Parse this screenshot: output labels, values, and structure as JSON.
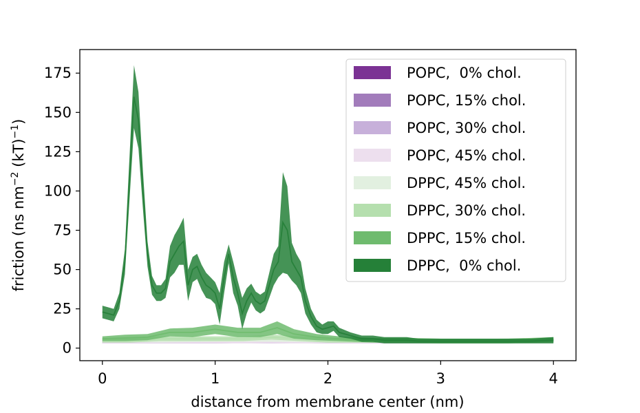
{
  "chart_data": {
    "type": "area",
    "xlabel": "distance from membrane center (nm)",
    "ylabel": "friction (ns nm",
    "ylabel_sup1": "−2",
    "ylabel_mid": " (kT)",
    "ylabel_sup2": "−1",
    "ylabel_end": ")",
    "xlim": [
      -0.2,
      4.2
    ],
    "ylim": [
      -8,
      190
    ],
    "x_ticks": [
      0,
      1,
      2,
      3,
      4
    ],
    "x_tick_labels": [
      "0",
      "1",
      "2",
      "3",
      "4"
    ],
    "y_ticks": [
      0,
      25,
      50,
      75,
      100,
      125,
      150,
      175
    ],
    "y_tick_labels": [
      "0",
      "25",
      "50",
      "75",
      "100",
      "125",
      "150",
      "175"
    ],
    "legend_position": "upper right",
    "series": [
      {
        "name": "POPC,  0% chol.",
        "color": "#7b3294",
        "x": [
          0,
          0.5,
          1.0,
          1.5,
          2.0,
          2.5,
          3.0,
          3.5,
          4.0
        ],
        "mean": [
          4.5,
          4,
          4,
          4.5,
          4,
          4,
          4,
          4.5,
          5
        ],
        "half_width": [
          1,
          1,
          1,
          1,
          1,
          1,
          1,
          1,
          1
        ]
      },
      {
        "name": "POPC, 15% chol.",
        "color": "#a27cbb",
        "x": [
          0,
          0.5,
          1.0,
          1.5,
          2.0,
          2.5,
          3.0,
          3.5,
          4.0
        ],
        "mean": [
          4,
          4,
          4.5,
          4,
          4.5,
          4,
          4,
          4.5,
          5
        ],
        "half_width": [
          1,
          1,
          1,
          1,
          1,
          1,
          1,
          1,
          1
        ]
      },
      {
        "name": "POPC, 30% chol.",
        "color": "#c7b0da",
        "x": [
          0,
          0.5,
          1.0,
          1.5,
          2.0,
          2.5,
          3.0,
          3.5,
          4.0
        ],
        "mean": [
          4,
          4,
          4,
          4.5,
          4,
          4,
          4,
          4,
          5
        ],
        "half_width": [
          1,
          1,
          1,
          1,
          1,
          1,
          1,
          1,
          1
        ]
      },
      {
        "name": "POPC, 45% chol.",
        "color": "#eddfee",
        "x": [
          0,
          0.5,
          1.0,
          1.5,
          2.0,
          2.5,
          3.0,
          3.5,
          4.0
        ],
        "mean": [
          4,
          4,
          4,
          4,
          4,
          4,
          4,
          4,
          4.5
        ],
        "half_width": [
          1,
          1,
          1,
          1,
          1,
          1,
          1,
          1,
          1
        ]
      },
      {
        "name": "DPPC, 45% chol.",
        "color": "#e2f0e0",
        "x": [
          0,
          0.5,
          1.0,
          1.5,
          2.0,
          2.5,
          3.0,
          3.5,
          4.0
        ],
        "mean": [
          5,
          4.5,
          5,
          5,
          4.5,
          4.5,
          4.5,
          4.5,
          5
        ],
        "half_width": [
          1,
          1,
          1,
          1,
          1,
          1,
          1,
          1,
          1
        ]
      },
      {
        "name": "DPPC, 30% chol.",
        "color": "#b5dfae",
        "x": [
          0,
          0.25,
          0.5,
          0.75,
          1.0,
          1.25,
          1.5,
          1.75,
          2.0,
          2.5,
          3.0,
          3.5,
          4.0
        ],
        "mean": [
          5,
          5,
          6,
          6,
          6,
          6,
          7,
          6,
          5,
          5,
          4.5,
          4.5,
          5
        ],
        "half_width": [
          1.5,
          1.5,
          1.5,
          1.5,
          1.5,
          1.5,
          1.5,
          1.5,
          1.5,
          1.5,
          1.5,
          1.5,
          1.5
        ]
      },
      {
        "name": "DPPC, 15% chol.",
        "color": "#6fbb6e",
        "x": [
          0,
          0.2,
          0.4,
          0.6,
          0.8,
          1.0,
          1.2,
          1.4,
          1.55,
          1.7,
          1.9,
          2.1,
          2.4,
          2.7,
          3.0,
          3.3,
          3.6,
          4.0
        ],
        "mean": [
          6,
          6.5,
          7,
          10,
          10,
          12,
          10,
          10,
          13,
          9,
          7,
          6,
          5,
          5,
          4.5,
          4.5,
          4.5,
          5.5
        ],
        "half_width": [
          1.5,
          2,
          2,
          2.5,
          3,
          3,
          3,
          3,
          4,
          3,
          2,
          1.5,
          1.5,
          1.5,
          1.5,
          1.5,
          1.5,
          1.5
        ]
      },
      {
        "name": "DPPC,  0% chol.",
        "color": "#258038",
        "x": [
          0,
          0.05,
          0.1,
          0.15,
          0.2,
          0.25,
          0.28,
          0.32,
          0.36,
          0.4,
          0.44,
          0.48,
          0.52,
          0.56,
          0.6,
          0.64,
          0.68,
          0.72,
          0.76,
          0.8,
          0.84,
          0.88,
          0.92,
          0.96,
          1.0,
          1.04,
          1.08,
          1.12,
          1.16,
          1.2,
          1.24,
          1.28,
          1.32,
          1.36,
          1.4,
          1.44,
          1.48,
          1.52,
          1.56,
          1.6,
          1.64,
          1.68,
          1.72,
          1.76,
          1.8,
          1.85,
          1.9,
          1.95,
          2.0,
          2.05,
          2.1,
          2.2,
          2.3,
          2.4,
          2.5,
          2.6,
          2.7,
          2.8,
          2.9,
          3.0,
          3.2,
          3.4,
          3.6,
          3.8,
          4.0
        ],
        "mean": [
          23,
          22,
          21,
          30,
          55,
          120,
          160,
          145,
          100,
          60,
          40,
          35,
          35,
          38,
          55,
          60,
          65,
          68,
          40,
          50,
          52,
          45,
          40,
          38,
          35,
          25,
          45,
          60,
          45,
          35,
          22,
          30,
          35,
          30,
          28,
          30,
          40,
          50,
          55,
          80,
          75,
          55,
          50,
          45,
          30,
          20,
          14,
          12,
          13,
          14,
          10,
          8,
          6,
          6,
          5,
          5,
          5,
          4.5,
          4.5,
          4.5,
          4.5,
          4.5,
          4.5,
          4.5,
          5
        ],
        "half_width": [
          4,
          4,
          4,
          5,
          8,
          15,
          20,
          18,
          12,
          8,
          6,
          5,
          5,
          6,
          10,
          12,
          12,
          15,
          10,
          8,
          8,
          8,
          8,
          7,
          7,
          10,
          10,
          6,
          10,
          8,
          10,
          8,
          6,
          6,
          6,
          6,
          8,
          10,
          10,
          32,
          28,
          12,
          10,
          10,
          8,
          5,
          4,
          3,
          4,
          3,
          3,
          2,
          2,
          2,
          2,
          2,
          2,
          1.5,
          1.5,
          1.5,
          1.5,
          1.5,
          1.5,
          1.5,
          2
        ]
      }
    ]
  }
}
